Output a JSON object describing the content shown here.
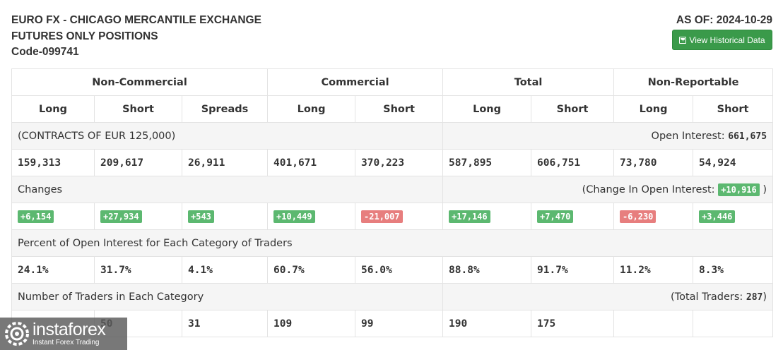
{
  "header": {
    "title_lines": [
      "EURO FX - CHICAGO MERCANTILE EXCHANGE",
      "FUTURES ONLY POSITIONS",
      "Code-099741"
    ],
    "as_of_label": "AS OF: 2024-10-29",
    "history_button": "View Historical Data"
  },
  "groups": [
    "Non-Commercial",
    "Commercial",
    "Total",
    "Non-Reportable"
  ],
  "columns": [
    "Long",
    "Short",
    "Spreads",
    "Long",
    "Short",
    "Long",
    "Short",
    "Long",
    "Short"
  ],
  "contracts": {
    "label": "(CONTRACTS OF EUR 125,000)",
    "open_interest_label": "Open Interest:",
    "open_interest_value": "661,675"
  },
  "positions": [
    "159,313",
    "209,617",
    "26,911",
    "401,671",
    "370,223",
    "587,895",
    "606,751",
    "73,780",
    "54,924"
  ],
  "changes": {
    "label": "Changes",
    "oi_change_prefix": "(Change In Open Interest:",
    "oi_change_value": "+10,916",
    "oi_change_suffix": ")",
    "values": [
      "+6,154",
      "+27,934",
      "+543",
      "+10,449",
      "-21,007",
      "+17,146",
      "+7,470",
      "-6,230",
      "+3,446"
    ]
  },
  "percent": {
    "label": "Percent of Open Interest for Each Category of Traders",
    "values": [
      "24.1%",
      "31.7%",
      "4.1%",
      "60.7%",
      "56.0%",
      "88.8%",
      "91.7%",
      "11.2%",
      "8.3%"
    ]
  },
  "traders": {
    "label": "Number of Traders in Each Category",
    "total_prefix": "(Total Traders:",
    "total_value": "287",
    "total_suffix": ")",
    "values": [
      "",
      "50",
      "31",
      "109",
      "99",
      "190",
      "175",
      "",
      ""
    ]
  },
  "logo": {
    "name": "instaforex",
    "tagline": "Instant Forex Trading"
  },
  "colors": {
    "accent_green": "#3a9a4a",
    "positive_badge": "#5cb870",
    "negative_badge": "#e77e7e"
  }
}
